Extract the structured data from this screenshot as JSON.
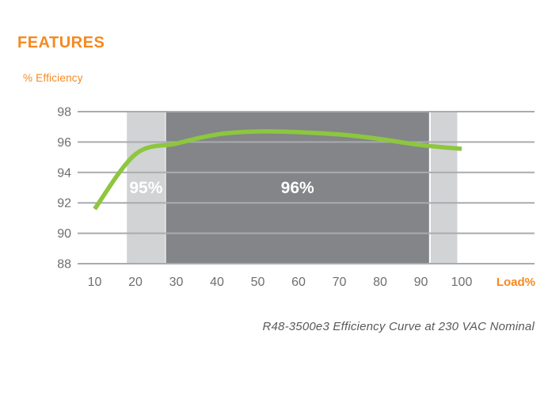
{
  "header": {
    "title": "FEATURES"
  },
  "colors": {
    "accent_orange": "#F6891F",
    "curve_green": "#8DC63F",
    "band_light": "#D1D3D4",
    "band_dark": "#838588",
    "gridline": "#A9ABAE",
    "tick_label": "#6D6E71",
    "caption": "#58595B",
    "band_label": "#FFFFFF",
    "background": "#FFFFFF"
  },
  "chart_data": {
    "type": "line",
    "title": "",
    "xlabel": "Load%",
    "ylabel": "% Efficiency",
    "x_ticks": [
      10,
      20,
      30,
      40,
      50,
      60,
      70,
      80,
      90,
      100
    ],
    "y_ticks": [
      88,
      90,
      92,
      94,
      96,
      98
    ],
    "xlim": [
      10,
      100
    ],
    "ylim": [
      88,
      98
    ],
    "grid": true,
    "legend": "none",
    "series": [
      {
        "name": "R48-3500e3 efficiency",
        "color": "#8DC63F",
        "points": [
          [
            10,
            91.6
          ],
          [
            20,
            95.2
          ],
          [
            30,
            95.9
          ],
          [
            40,
            96.5
          ],
          [
            50,
            96.7
          ],
          [
            60,
            96.65
          ],
          [
            70,
            96.5
          ],
          [
            80,
            96.2
          ],
          [
            90,
            95.8
          ],
          [
            100,
            95.55
          ]
        ]
      }
    ],
    "bands": [
      {
        "label": "95%",
        "from_load": 17.9,
        "to_load": 27.3,
        "shade": "light"
      },
      {
        "label": "96%",
        "from_load": 27.5,
        "to_load": 92.0,
        "shade": "dark"
      },
      {
        "label": "",
        "from_load": 92.4,
        "to_load": 98.9,
        "shade": "light"
      }
    ],
    "band_label_eff": 93,
    "caption": "R48-3500e3 Efficiency Curve at 230 VAC Nominal"
  }
}
